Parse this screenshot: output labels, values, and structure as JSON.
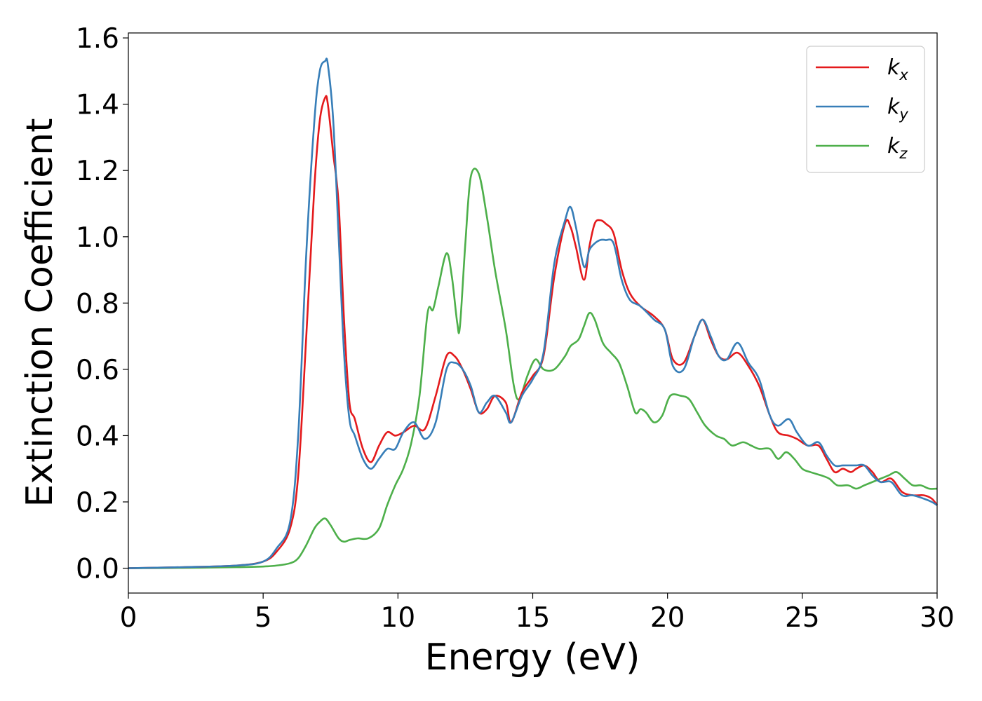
{
  "chart_data": {
    "type": "line",
    "title": "",
    "xlabel": "Energy (eV)",
    "ylabel": "Extinction Coefficient",
    "xlim": [
      0,
      30
    ],
    "ylim": [
      -0.075,
      1.615
    ],
    "xticks": [
      0,
      5,
      10,
      15,
      20,
      25,
      30
    ],
    "xtick_labels": [
      "0",
      "5",
      "10",
      "15",
      "20",
      "25",
      "30"
    ],
    "yticks": [
      0.0,
      0.2,
      0.4,
      0.6,
      0.8,
      1.0,
      1.2,
      1.4,
      1.6
    ],
    "ytick_labels": [
      "0.0",
      "0.2",
      "0.4",
      "0.6",
      "0.8",
      "1.0",
      "1.2",
      "1.4",
      "1.6"
    ],
    "grid": false,
    "legend_position": "top-right",
    "series": [
      {
        "name": "k_x",
        "label_base": "k",
        "label_sub": "x",
        "color": "#e41a1c",
        "x": [
          0,
          2,
          4,
          5,
          5.5,
          6.0,
          6.3,
          6.6,
          6.9,
          7.1,
          7.3,
          7.4,
          7.6,
          7.8,
          8.0,
          8.2,
          8.4,
          8.7,
          9.0,
          9.3,
          9.6,
          9.9,
          10.2,
          10.6,
          11.0,
          11.4,
          11.8,
          12.1,
          12.4,
          12.7,
          13.0,
          13.3,
          13.6,
          14.0,
          14.2,
          14.6,
          15.0,
          15.4,
          15.8,
          16.2,
          16.4,
          16.6,
          16.9,
          17.1,
          17.3,
          17.5,
          17.7,
          18.0,
          18.3,
          18.6,
          19.0,
          19.5,
          19.9,
          20.2,
          20.6,
          21.0,
          21.3,
          21.6,
          21.9,
          22.2,
          22.6,
          23.0,
          23.4,
          23.8,
          24.1,
          24.5,
          24.8,
          25.2,
          25.6,
          25.9,
          26.2,
          26.5,
          26.8,
          27.0,
          27.3,
          27.6,
          27.9,
          28.3,
          28.7,
          29.1,
          29.5,
          29.8,
          30.0
        ],
        "y": [
          0.0,
          0.003,
          0.008,
          0.02,
          0.05,
          0.12,
          0.28,
          0.7,
          1.15,
          1.35,
          1.42,
          1.4,
          1.25,
          1.1,
          0.75,
          0.5,
          0.45,
          0.36,
          0.32,
          0.37,
          0.41,
          0.4,
          0.41,
          0.43,
          0.42,
          0.52,
          0.64,
          0.64,
          0.6,
          0.54,
          0.47,
          0.48,
          0.52,
          0.5,
          0.44,
          0.53,
          0.58,
          0.64,
          0.88,
          1.04,
          1.03,
          0.97,
          0.87,
          0.97,
          1.04,
          1.05,
          1.04,
          1.01,
          0.9,
          0.83,
          0.79,
          0.76,
          0.72,
          0.63,
          0.62,
          0.7,
          0.75,
          0.69,
          0.64,
          0.63,
          0.65,
          0.61,
          0.55,
          0.46,
          0.41,
          0.4,
          0.39,
          0.37,
          0.37,
          0.33,
          0.29,
          0.3,
          0.29,
          0.3,
          0.31,
          0.29,
          0.26,
          0.27,
          0.23,
          0.22,
          0.22,
          0.21,
          0.19
        ]
      },
      {
        "name": "k_y",
        "label_base": "k",
        "label_sub": "y",
        "color": "#377eb8",
        "x": [
          0,
          2,
          4,
          5,
          5.5,
          6.0,
          6.3,
          6.6,
          6.9,
          7.1,
          7.3,
          7.4,
          7.6,
          7.8,
          8.0,
          8.2,
          8.4,
          8.7,
          9.0,
          9.3,
          9.6,
          9.9,
          10.2,
          10.6,
          11.0,
          11.4,
          11.8,
          12.1,
          12.4,
          12.7,
          13.0,
          13.3,
          13.6,
          14.0,
          14.2,
          14.6,
          15.0,
          15.4,
          15.8,
          16.2,
          16.4,
          16.6,
          16.9,
          17.1,
          17.3,
          17.5,
          17.7,
          18.0,
          18.3,
          18.6,
          19.0,
          19.5,
          19.9,
          20.2,
          20.6,
          21.0,
          21.3,
          21.6,
          21.9,
          22.2,
          22.6,
          23.0,
          23.4,
          23.8,
          24.1,
          24.5,
          24.8,
          25.2,
          25.6,
          25.9,
          26.2,
          26.5,
          26.8,
          27.0,
          27.3,
          27.6,
          27.9,
          28.3,
          28.7,
          29.1,
          29.5,
          29.8,
          30.0
        ],
        "y": [
          0.0,
          0.003,
          0.008,
          0.02,
          0.06,
          0.14,
          0.4,
          0.95,
          1.35,
          1.5,
          1.53,
          1.52,
          1.35,
          1.0,
          0.65,
          0.45,
          0.4,
          0.33,
          0.3,
          0.33,
          0.36,
          0.36,
          0.41,
          0.44,
          0.39,
          0.44,
          0.6,
          0.62,
          0.6,
          0.55,
          0.47,
          0.5,
          0.52,
          0.47,
          0.44,
          0.52,
          0.57,
          0.65,
          0.92,
          1.05,
          1.09,
          1.03,
          0.91,
          0.96,
          0.98,
          0.99,
          0.99,
          0.98,
          0.87,
          0.81,
          0.79,
          0.75,
          0.72,
          0.61,
          0.6,
          0.7,
          0.75,
          0.7,
          0.64,
          0.63,
          0.68,
          0.62,
          0.57,
          0.46,
          0.43,
          0.45,
          0.41,
          0.37,
          0.38,
          0.34,
          0.31,
          0.31,
          0.31,
          0.31,
          0.31,
          0.28,
          0.26,
          0.26,
          0.22,
          0.22,
          0.21,
          0.2,
          0.19
        ]
      },
      {
        "name": "k_z",
        "label_base": "k",
        "label_sub": "z",
        "color": "#4daf4a",
        "x": [
          0,
          2,
          4,
          5,
          5.5,
          6.0,
          6.3,
          6.6,
          6.9,
          7.1,
          7.3,
          7.5,
          7.8,
          8.0,
          8.2,
          8.5,
          8.9,
          9.3,
          9.6,
          9.9,
          10.2,
          10.5,
          10.8,
          11.1,
          11.3,
          11.5,
          11.8,
          12.0,
          12.2,
          12.3,
          12.5,
          12.7,
          13.0,
          13.3,
          13.6,
          14.0,
          14.3,
          14.5,
          14.8,
          15.1,
          15.4,
          15.8,
          16.2,
          16.4,
          16.7,
          16.9,
          17.1,
          17.3,
          17.6,
          17.9,
          18.2,
          18.5,
          18.8,
          19.0,
          19.2,
          19.5,
          19.8,
          20.1,
          20.5,
          20.8,
          21.1,
          21.4,
          21.8,
          22.1,
          22.4,
          22.8,
          23.1,
          23.4,
          23.8,
          24.1,
          24.4,
          24.7,
          25.0,
          25.3,
          25.7,
          26.0,
          26.3,
          26.7,
          27.0,
          27.3,
          27.6,
          27.9,
          28.2,
          28.5,
          28.8,
          29.1,
          29.4,
          29.7,
          30.0
        ],
        "y": [
          0.0,
          0.001,
          0.003,
          0.005,
          0.008,
          0.015,
          0.03,
          0.07,
          0.12,
          0.14,
          0.15,
          0.13,
          0.09,
          0.08,
          0.085,
          0.09,
          0.09,
          0.12,
          0.19,
          0.25,
          0.3,
          0.38,
          0.52,
          0.77,
          0.78,
          0.85,
          0.95,
          0.88,
          0.74,
          0.73,
          0.98,
          1.18,
          1.19,
          1.06,
          0.9,
          0.72,
          0.55,
          0.51,
          0.58,
          0.63,
          0.6,
          0.6,
          0.64,
          0.67,
          0.69,
          0.73,
          0.77,
          0.75,
          0.68,
          0.65,
          0.62,
          0.55,
          0.47,
          0.48,
          0.47,
          0.44,
          0.46,
          0.52,
          0.52,
          0.51,
          0.47,
          0.43,
          0.4,
          0.39,
          0.37,
          0.38,
          0.37,
          0.36,
          0.36,
          0.33,
          0.35,
          0.33,
          0.3,
          0.29,
          0.28,
          0.27,
          0.25,
          0.25,
          0.24,
          0.25,
          0.26,
          0.27,
          0.28,
          0.29,
          0.27,
          0.25,
          0.25,
          0.24,
          0.24
        ]
      }
    ]
  }
}
